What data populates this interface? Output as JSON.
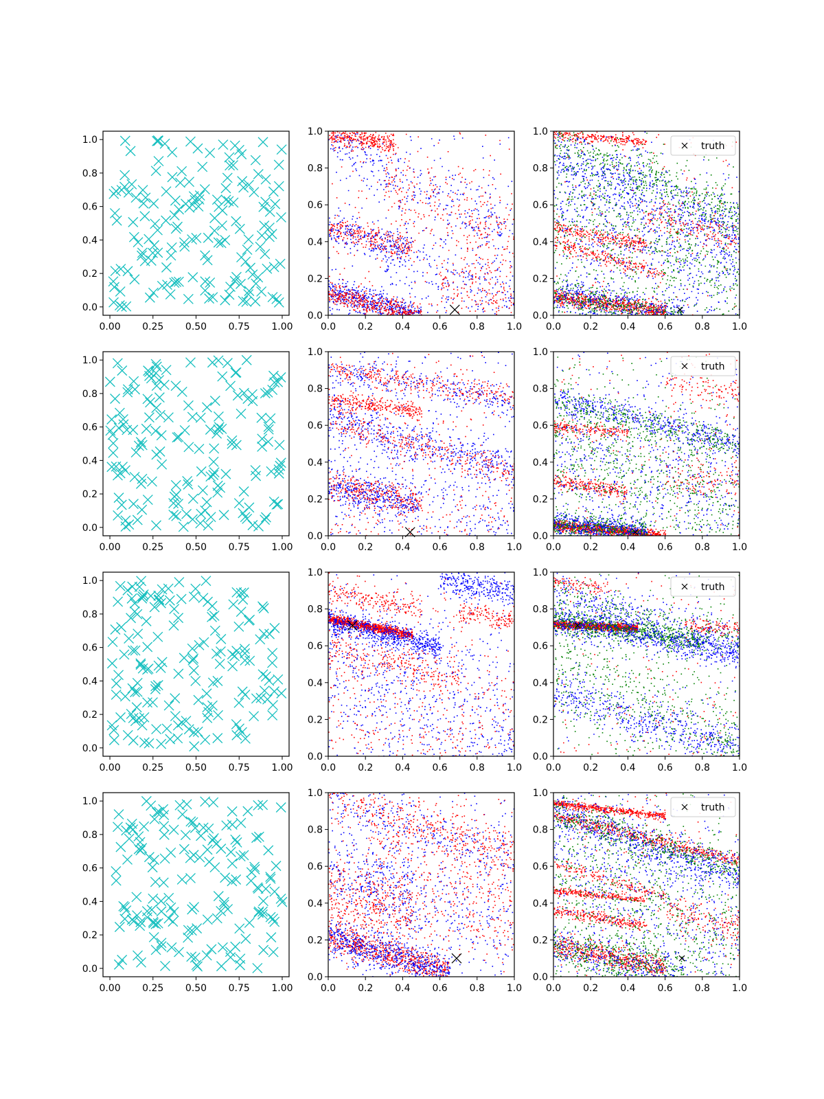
{
  "figure": {
    "rows": 4,
    "cols": 3
  },
  "colors": {
    "left": "#17bfbf",
    "red": "#ff0000",
    "blue": "#0000ff",
    "green": "#008000",
    "truth": "#000000"
  },
  "legend": {
    "label": "truth",
    "placement": "upper-right"
  },
  "chart_data": [
    {
      "type": "scatter",
      "row": 0,
      "col": 0,
      "marker": "x",
      "xticks": [
        "0.00",
        "0.25",
        "0.50",
        "0.75",
        "1.00"
      ],
      "yticks": [
        "0.0",
        "0.2",
        "0.4",
        "0.6",
        "0.8",
        "1.0"
      ],
      "xlim": [
        -0.04,
        1.04
      ],
      "ylim": [
        -0.05,
        1.05
      ],
      "points": 170,
      "seed": 11
    },
    {
      "type": "scatter",
      "row": 0,
      "col": 1,
      "marker": "dot",
      "xticks": [
        "0.0",
        "0.2",
        "0.4",
        "0.6",
        "0.8",
        "1.0"
      ],
      "yticks": [
        "0.0",
        "0.2",
        "0.4",
        "0.6",
        "0.8",
        "1.0"
      ],
      "xlim": [
        0,
        1
      ],
      "ylim": [
        0,
        1
      ],
      "truth": [
        0.68,
        0.03
      ],
      "seed": 101,
      "series": [
        {
          "color": "red",
          "points": [
            [
              0.0,
              0.18,
              0.0,
              1.0,
              0.2,
              5,
              0.0,
              1.0,
              1,
              "r"
            ]
          ]
        }
      ]
    },
    {
      "type": "scatter",
      "row": 0,
      "col": 2,
      "marker": "dot",
      "xticks": [
        "0.0",
        "0.2",
        "0.4",
        "0.6",
        "0.8",
        "1.0"
      ],
      "yticks": [
        "0.0",
        "0.2",
        "0.4",
        "0.6",
        "0.8",
        "1.0"
      ],
      "xlim": [
        0,
        1
      ],
      "ylim": [
        0,
        1
      ],
      "truth": [
        0.68,
        0.03
      ],
      "legend": true,
      "seed": 201
    },
    {
      "type": "scatter",
      "row": 1,
      "col": 0,
      "marker": "x",
      "xticks": [
        "0.00",
        "0.25",
        "0.50",
        "0.75",
        "1.00"
      ],
      "yticks": [
        "0.0",
        "0.2",
        "0.4",
        "0.6",
        "0.8",
        "1.0"
      ],
      "xlim": [
        -0.04,
        1.04
      ],
      "ylim": [
        -0.05,
        1.05
      ],
      "points": 170,
      "seed": 22
    },
    {
      "type": "scatter",
      "row": 1,
      "col": 1,
      "marker": "dot",
      "xticks": [
        "0.0",
        "0.2",
        "0.4",
        "0.6",
        "0.8",
        "1.0"
      ],
      "yticks": [
        "0.0",
        "0.2",
        "0.4",
        "0.6",
        "0.8",
        "1.0"
      ],
      "xlim": [
        0,
        1
      ],
      "ylim": [
        0,
        1
      ],
      "truth": [
        0.44,
        0.02
      ],
      "seed": 102
    },
    {
      "type": "scatter",
      "row": 1,
      "col": 2,
      "marker": "dot",
      "xticks": [
        "0.0",
        "0.2",
        "0.4",
        "0.6",
        "0.8",
        "1.0"
      ],
      "yticks": [
        "0.0",
        "0.2",
        "0.4",
        "0.6",
        "0.8",
        "1.0"
      ],
      "xlim": [
        0,
        1
      ],
      "ylim": [
        0,
        1
      ],
      "truth": [
        0.44,
        0.02
      ],
      "legend": true,
      "seed": 202
    },
    {
      "type": "scatter",
      "row": 2,
      "col": 0,
      "marker": "x",
      "xticks": [
        "0.00",
        "0.25",
        "0.50",
        "0.75",
        "1.00"
      ],
      "yticks": [
        "0.0",
        "0.2",
        "0.4",
        "0.6",
        "0.8",
        "1.0"
      ],
      "xlim": [
        -0.04,
        1.04
      ],
      "ylim": [
        -0.05,
        1.05
      ],
      "points": 170,
      "seed": 33
    },
    {
      "type": "scatter",
      "row": 2,
      "col": 1,
      "marker": "dot",
      "xticks": [
        "0.0",
        "0.2",
        "0.4",
        "0.6",
        "0.8",
        "1.0"
      ],
      "yticks": [
        "0.0",
        "0.2",
        "0.4",
        "0.6",
        "0.8",
        "1.0"
      ],
      "xlim": [
        0,
        1
      ],
      "ylim": [
        0,
        1
      ],
      "truth": [
        0.13,
        0.71
      ],
      "seed": 103
    },
    {
      "type": "scatter",
      "row": 2,
      "col": 2,
      "marker": "dot",
      "xticks": [
        "0.0",
        "0.2",
        "0.4",
        "0.6",
        "0.8",
        "1.0"
      ],
      "yticks": [
        "0.0",
        "0.2",
        "0.4",
        "0.6",
        "0.8",
        "1.0"
      ],
      "xlim": [
        0,
        1
      ],
      "ylim": [
        0,
        1
      ],
      "truth": [
        0.13,
        0.71
      ],
      "legend": true,
      "seed": 203
    },
    {
      "type": "scatter",
      "row": 3,
      "col": 0,
      "marker": "x",
      "xticks": [
        "0.00",
        "0.25",
        "0.50",
        "0.75",
        "1.00"
      ],
      "yticks": [
        "0.0",
        "0.2",
        "0.4",
        "0.6",
        "0.8",
        "1.0"
      ],
      "xlim": [
        -0.04,
        1.04
      ],
      "ylim": [
        -0.05,
        1.05
      ],
      "points": 170,
      "seed": 44
    },
    {
      "type": "scatter",
      "row": 3,
      "col": 1,
      "marker": "dot",
      "xticks": [
        "0.0",
        "0.2",
        "0.4",
        "0.6",
        "0.8",
        "1.0"
      ],
      "yticks": [
        "0.0",
        "0.2",
        "0.4",
        "0.6",
        "0.8",
        "1.0"
      ],
      "xlim": [
        0,
        1
      ],
      "ylim": [
        0,
        1
      ],
      "truth": [
        0.69,
        0.1
      ],
      "seed": 104
    },
    {
      "type": "scatter",
      "row": 3,
      "col": 2,
      "marker": "dot",
      "xticks": [
        "0.0",
        "0.2",
        "0.4",
        "0.6",
        "0.8",
        "1.0"
      ],
      "yticks": [
        "0.0",
        "0.2",
        "0.4",
        "0.6",
        "0.8",
        "1.0"
      ],
      "xlim": [
        0,
        1
      ],
      "ylim": [
        0,
        1
      ],
      "truth": [
        0.69,
        0.1
      ],
      "legend": true,
      "seed": 204
    }
  ]
}
